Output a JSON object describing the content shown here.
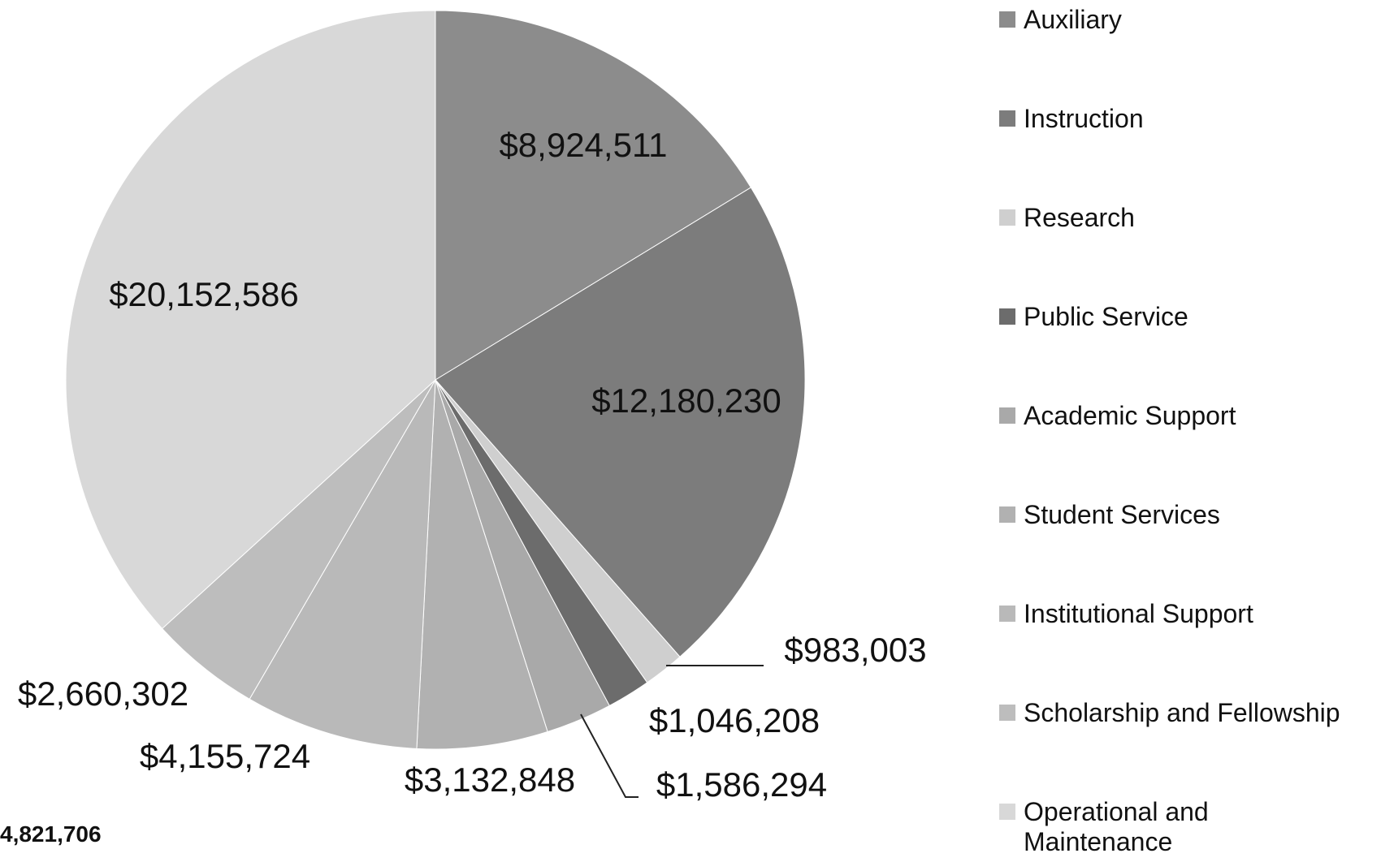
{
  "chart_data": {
    "type": "pie",
    "categories": [
      "Auxiliary",
      "Instruction",
      "Research",
      "Public Service",
      "Academic Support",
      "Student Services",
      "Institutional Support",
      "Scholarship and Fellowship",
      "Operational and Maintenance"
    ],
    "values": [
      8924511,
      12180230,
      983003,
      1046208,
      1586294,
      3132848,
      4155724,
      2660302,
      20152586
    ],
    "value_labels": [
      "$8,924,511",
      "$12,180,230",
      "$983,003",
      "$1,046,208",
      "$1,586,294",
      "$3,132,848",
      "$4,155,724",
      "$2,660,302",
      "$20,152,586"
    ],
    "colors": [
      "#8c8c8c",
      "#7c7c7c",
      "#cfcfcf",
      "#6c6c6c",
      "#a9a9a9",
      "#b1b1b1",
      "#b9b9b9",
      "#bdbdbd",
      "#d8d8d8"
    ],
    "annotation": "4,821,706",
    "legend": "right"
  }
}
